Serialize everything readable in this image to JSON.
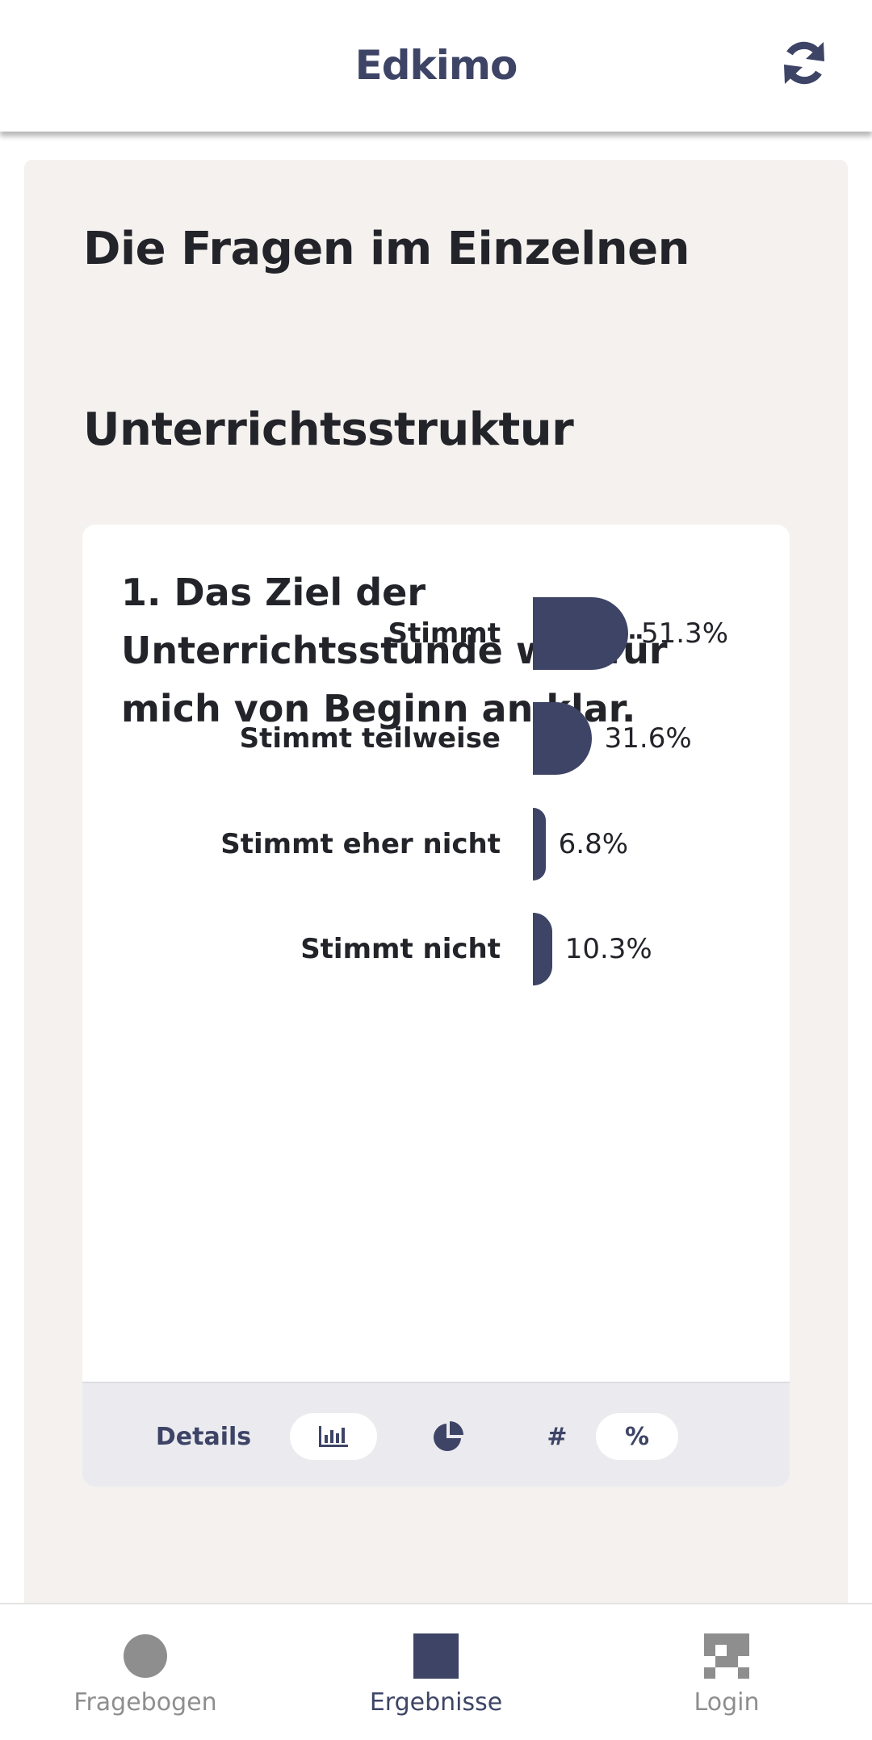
{
  "header": {
    "title": "Edkimo",
    "refresh_icon": "refresh-icon"
  },
  "main": {
    "section_title": "Die Fragen im Einzelnen",
    "category_title": "Unterrichtsstruktur",
    "question": {
      "text": "1. Das Ziel der Unterrichtsstunde war für mich von Beginn an klar.",
      "chart_data": {
        "type": "bar",
        "categories": [
          "Stimmt",
          "Stimmt teilweise",
          "Stimmt eher nicht",
          "Stimmt nicht"
        ],
        "values": [
          51.3,
          31.6,
          6.8,
          10.3
        ],
        "value_labels": [
          "51.3%",
          "31.6%",
          "6.8%",
          "10.3%"
        ],
        "unit": "%",
        "color": "#3d4466"
      },
      "footer": {
        "details_label": "Details",
        "bar_icon": "bar-chart-icon",
        "pie_icon": "pie-chart-icon",
        "count_label": "#",
        "percent_label": "%"
      }
    }
  },
  "bottom_nav": {
    "items": [
      {
        "label": "Fragebogen",
        "icon": "circle-icon",
        "active": false
      },
      {
        "label": "Ergebnisse",
        "icon": "square-icon",
        "active": true
      },
      {
        "label": "Login",
        "icon": "login-icon",
        "active": false
      }
    ]
  },
  "colors": {
    "accent": "#3d4466",
    "panel_bg": "#f4f1ee",
    "inactive": "#8e8e8e"
  }
}
